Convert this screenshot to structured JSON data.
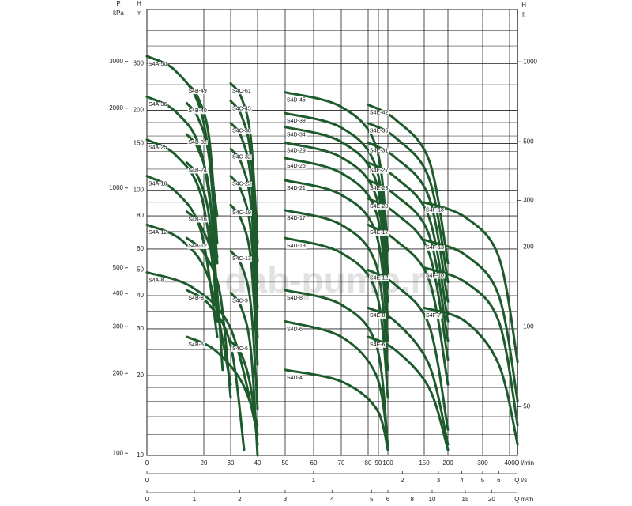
{
  "chart_data": {
    "type": "line",
    "ylog": true,
    "color": "#1d5a2c",
    "watermark": "dab-pump.ru",
    "y_title": "H",
    "y_unit": "m",
    "ylim": [
      10,
      480
    ],
    "yticks": [
      10,
      20,
      30,
      40,
      50,
      60,
      80,
      100,
      150,
      200,
      300
    ],
    "ygrid": [
      12,
      14,
      16,
      18,
      25,
      35,
      45,
      70,
      90,
      120,
      140,
      160,
      180,
      250,
      350,
      400,
      450
    ],
    "p_title": "P",
    "p_unit": "kPa",
    "plim": [
      98.1,
      4709
    ],
    "pticks": [
      100,
      200,
      300,
      400,
      500,
      1000,
      2000,
      3000
    ],
    "y2_title": "H",
    "y2_unit": "ft",
    "y2lim": [
      32.8,
      1575
    ],
    "y2ticks": [
      50,
      100,
      200,
      300,
      500,
      1000
    ],
    "x_title": "Q",
    "x_unit": "l/min",
    "xlim": [
      0,
      430
    ],
    "xticks": [
      0,
      20,
      30,
      40,
      50,
      60,
      70,
      80,
      90,
      100,
      150,
      200,
      300,
      400
    ],
    "x2_title": "Q",
    "x2_unit": "l/s",
    "x2lim": [
      0,
      7.17
    ],
    "x2ticks": [
      0,
      1,
      2,
      3,
      4,
      5,
      6
    ],
    "x3_title": "Q",
    "x3_unit": "m³/h",
    "x3lim": [
      0,
      25.8
    ],
    "x3ticks": [
      0,
      1,
      2,
      3,
      4,
      5,
      6,
      8,
      10,
      15,
      20
    ],
    "series": [
      {
        "name": "S4A-50",
        "x": [
          0,
          10,
          19,
          25
        ],
        "values": [
          320,
          282,
          198,
          80
        ]
      },
      {
        "name": "S4A-36",
        "x": [
          0,
          10,
          19,
          25
        ],
        "values": [
          225,
          198,
          140,
          56
        ]
      },
      {
        "name": "S4A-25",
        "x": [
          0,
          10,
          19,
          25
        ],
        "values": [
          155,
          136,
          96,
          39
        ]
      },
      {
        "name": "S4A-18",
        "x": [
          0,
          10,
          19,
          25
        ],
        "values": [
          113,
          99,
          70,
          28
        ]
      },
      {
        "name": "S4A-12",
        "x": [
          0,
          12,
          22,
          30
        ],
        "values": [
          74,
          65,
          46,
          18.5
        ]
      },
      {
        "name": "S4A-8",
        "x": [
          0,
          16,
          30,
          40
        ],
        "values": [
          49,
          43,
          30,
          12
        ]
      },
      {
        "name": "S4B-49",
        "x": [
          14,
          18,
          22,
          25
        ],
        "values": [
          253,
          223,
          157,
          63
        ]
      },
      {
        "name": "S4B-40",
        "x": [
          14,
          18,
          22,
          25
        ],
        "values": [
          213,
          187,
          132,
          53
        ]
      },
      {
        "name": "S4B-32",
        "x": [
          14,
          18,
          22,
          25
        ],
        "values": [
          162,
          143,
          100,
          40
        ]
      },
      {
        "name": "S4B-24",
        "x": [
          14,
          18,
          22,
          25
        ],
        "values": [
          127,
          112,
          79,
          32
        ]
      },
      {
        "name": "S4B-16",
        "x": [
          14,
          19,
          24,
          27
        ],
        "values": [
          83,
          73,
          51,
          21
        ]
      },
      {
        "name": "S4B-12",
        "x": [
          14,
          20,
          26,
          30
        ],
        "values": [
          66,
          58,
          41,
          16.5
        ]
      },
      {
        "name": "S4B-8",
        "x": [
          14,
          22,
          30,
          35
        ],
        "values": [
          42,
          37,
          26,
          10.5
        ]
      },
      {
        "name": "S4B-5",
        "x": [
          14,
          24,
          34,
          40
        ],
        "values": [
          28,
          25,
          19,
          13
        ]
      },
      {
        "name": "S4C-61",
        "x": [
          30,
          34,
          37.5,
          40
        ],
        "values": [
          253,
          223,
          157,
          63
        ]
      },
      {
        "name": "S4C-45",
        "x": [
          30,
          34,
          37.5,
          40
        ],
        "values": [
          217,
          191,
          135,
          54
        ]
      },
      {
        "name": "S4C-38",
        "x": [
          30,
          34,
          37.5,
          40
        ],
        "values": [
          179,
          158,
          111,
          45
        ]
      },
      {
        "name": "S4C-32",
        "x": [
          30,
          34,
          37.5,
          40
        ],
        "values": [
          143,
          126,
          89,
          36
        ]
      },
      {
        "name": "S4C-25",
        "x": [
          30,
          34,
          37.5,
          40
        ],
        "values": [
          113,
          99,
          70,
          28
        ]
      },
      {
        "name": "S4C-19",
        "x": [
          30,
          34,
          37.5,
          40
        ],
        "values": [
          88,
          77,
          55,
          22
        ]
      },
      {
        "name": "S4C-13",
        "x": [
          30,
          34,
          37.5,
          40
        ],
        "values": [
          59,
          52,
          37,
          15
        ]
      },
      {
        "name": "S4C-9",
        "x": [
          30,
          34,
          37.5,
          40
        ],
        "values": [
          41,
          36,
          25,
          10
        ]
      },
      {
        "name": "S4C-6",
        "x": [
          30,
          34,
          37.5,
          40
        ],
        "values": [
          27,
          24,
          18,
          11
        ]
      },
      {
        "name": "S4D-45",
        "x": [
          50,
          70,
          88,
          100
        ],
        "values": [
          234,
          206,
          145,
          59
        ]
      },
      {
        "name": "S4D-38",
        "x": [
          50,
          70,
          88,
          100
        ],
        "values": [
          195,
          172,
          121,
          49
        ]
      },
      {
        "name": "S4D-34",
        "x": [
          50,
          70,
          88,
          100
        ],
        "values": [
          173,
          152,
          107,
          43
        ]
      },
      {
        "name": "S4D-29",
        "x": [
          50,
          70,
          88,
          100
        ],
        "values": [
          151,
          133,
          94,
          38
        ]
      },
      {
        "name": "S4D-25",
        "x": [
          50,
          70,
          88,
          100
        ],
        "values": [
          132,
          116,
          82,
          33
        ]
      },
      {
        "name": "S4D-21",
        "x": [
          50,
          70,
          88,
          100
        ],
        "values": [
          109,
          96,
          68,
          27
        ]
      },
      {
        "name": "S4D-17",
        "x": [
          50,
          70,
          88,
          100
        ],
        "values": [
          84,
          74,
          52,
          21
        ]
      },
      {
        "name": "S4D-13",
        "x": [
          50,
          70,
          88,
          100
        ],
        "values": [
          66,
          58,
          41,
          16.5
        ]
      },
      {
        "name": "S4D-8",
        "x": [
          50,
          70,
          88,
          100
        ],
        "values": [
          42,
          37,
          26,
          10.5
        ]
      },
      {
        "name": "S4D-6",
        "x": [
          50,
          70,
          88,
          100
        ],
        "values": [
          32,
          28,
          20,
          11
        ]
      },
      {
        "name": "S4D-4",
        "x": [
          50,
          70,
          88,
          100
        ],
        "values": [
          21,
          19,
          15,
          10.5
        ]
      },
      {
        "name": "S4E-42",
        "x": [
          80,
          110,
          160,
          200
        ],
        "values": [
          210,
          185,
          130,
          53
        ]
      },
      {
        "name": "S4E-36",
        "x": [
          80,
          110,
          160,
          200
        ],
        "values": [
          179,
          158,
          111,
          45
        ]
      },
      {
        "name": "S4E-31",
        "x": [
          80,
          110,
          160,
          200
        ],
        "values": [
          151,
          133,
          94,
          38
        ]
      },
      {
        "name": "S4E-27",
        "x": [
          80,
          110,
          160,
          200
        ],
        "values": [
          127,
          112,
          79,
          32
        ]
      },
      {
        "name": "S4E-23",
        "x": [
          80,
          110,
          160,
          200
        ],
        "values": [
          109,
          96,
          68,
          27
        ]
      },
      {
        "name": "S4E-20",
        "x": [
          80,
          110,
          160,
          200
        ],
        "values": [
          93,
          82,
          58,
          23
        ]
      },
      {
        "name": "S4E-17",
        "x": [
          80,
          110,
          160,
          200
        ],
        "values": [
          74,
          65,
          46,
          18.5
        ]
      },
      {
        "name": "S4E-12",
        "x": [
          80,
          110,
          160,
          200
        ],
        "values": [
          50,
          44,
          31,
          12.5
        ]
      },
      {
        "name": "S4E-8",
        "x": [
          80,
          110,
          160,
          200
        ],
        "values": [
          36,
          32,
          22,
          11
        ]
      },
      {
        "name": "S4E-6",
        "x": [
          80,
          110,
          160,
          200
        ],
        "values": [
          28,
          25,
          18,
          10.5
        ]
      },
      {
        "name": "S4F-18",
        "x": [
          150,
          250,
          360,
          430
        ],
        "values": [
          90,
          79,
          56,
          22.5
        ]
      },
      {
        "name": "S4F-13",
        "x": [
          150,
          250,
          360,
          430
        ],
        "values": [
          65,
          57,
          40,
          16
        ]
      },
      {
        "name": "S4F-10",
        "x": [
          150,
          250,
          360,
          430
        ],
        "values": [
          51,
          45,
          32,
          13
        ]
      },
      {
        "name": "S4F-7",
        "x": [
          150,
          250,
          360,
          430
        ],
        "values": [
          36,
          32,
          22,
          11
        ]
      }
    ]
  }
}
